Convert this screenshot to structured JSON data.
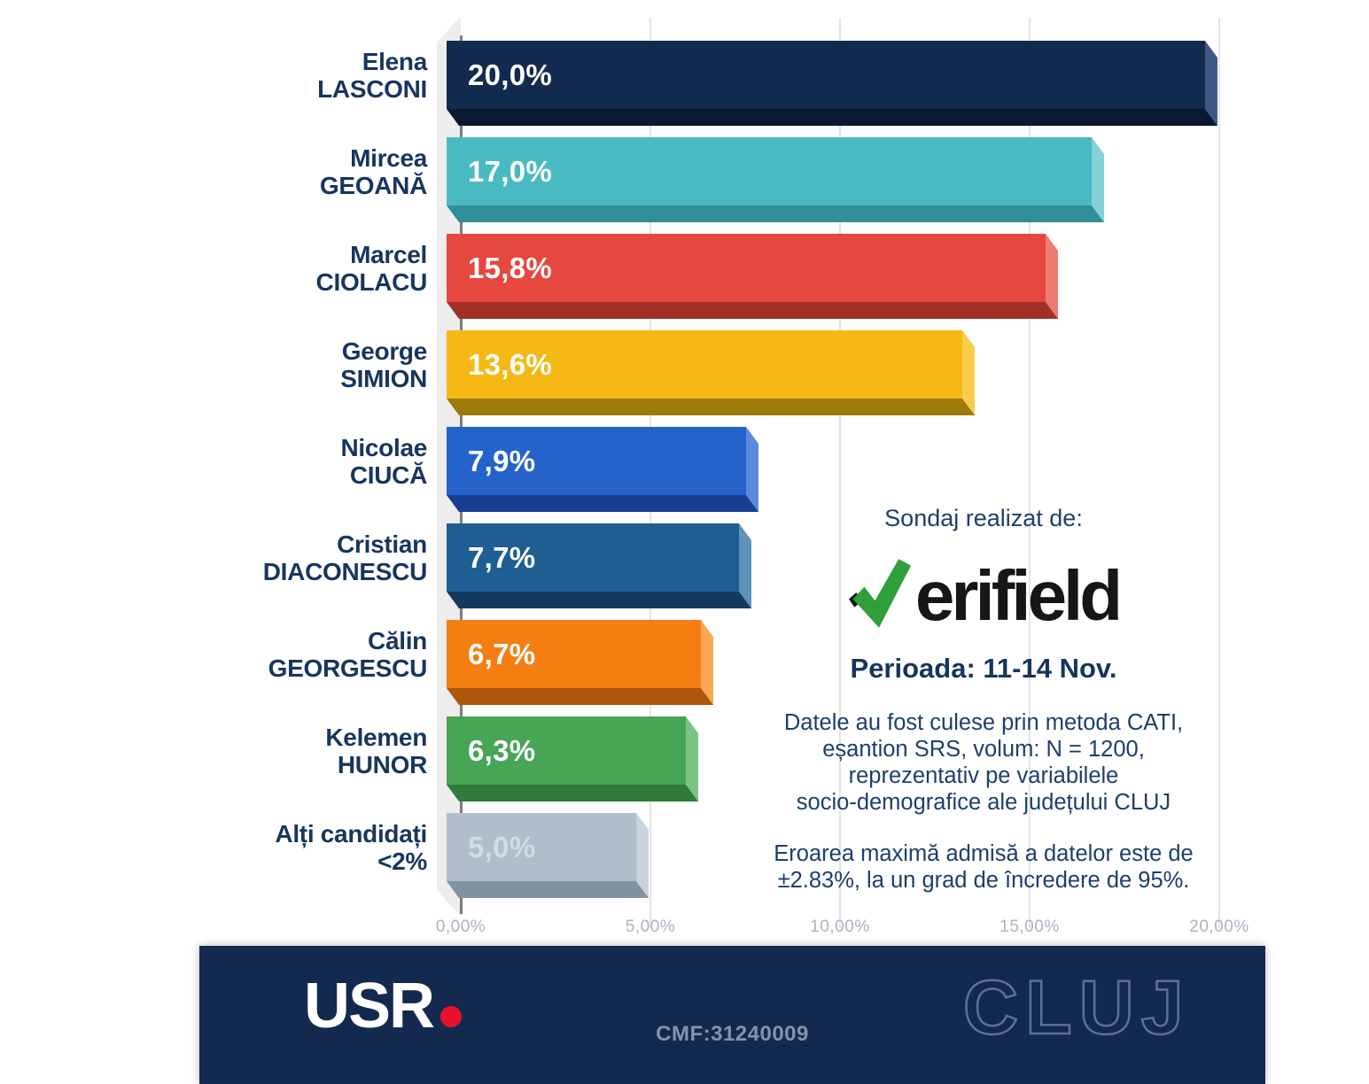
{
  "chart_data": {
    "type": "bar",
    "orientation": "horizontal",
    "unit": "%",
    "xlim": [
      0,
      20
    ],
    "grid": true,
    "x_ticks": [
      {
        "value": 0,
        "label": "0,00%"
      },
      {
        "value": 5,
        "label": "5,00%"
      },
      {
        "value": 10,
        "label": "10,00%"
      },
      {
        "value": 15,
        "label": "15,00%"
      },
      {
        "value": 20,
        "label": "20,00%"
      }
    ],
    "categories": [
      "Elena LASCONI",
      "Mircea GEOANĂ",
      "Marcel CIOLACU",
      "George SIMION",
      "Nicolae CIUCĂ",
      "Cristian DIACONESCU",
      "Călin GEORGESCU",
      "Kelemen HUNOR",
      "Alți candidați <2%"
    ],
    "values": [
      20.0,
      17.0,
      15.8,
      13.6,
      7.9,
      7.7,
      6.7,
      6.3,
      5.0
    ],
    "bars": [
      {
        "line1": "Elena",
        "line2": "LASCONI",
        "value": 20.0,
        "label": "20,0%",
        "color": "#132A4F",
        "side": "#3E5A84",
        "shade": "#0A1830",
        "label_color": "#FFFFFF"
      },
      {
        "line1": "Mircea",
        "line2": "GEOANĂ",
        "value": 17.0,
        "label": "17,0%",
        "color": "#49BAC2",
        "side": "#83D2D6",
        "shade": "#2F8E96",
        "label_color": "#FFFFFF"
      },
      {
        "line1": "Marcel",
        "line2": "CIOLACU",
        "value": 15.8,
        "label": "15,8%",
        "color": "#E6473E",
        "side": "#EE7B71",
        "shade": "#A02F28",
        "label_color": "#FFFFFF"
      },
      {
        "line1": "George",
        "line2": "SIMION",
        "value": 13.6,
        "label": "13,6%",
        "color": "#F6B913",
        "side": "#F9CC4B",
        "shade": "#9E7A09",
        "label_color": "#FFFFFF"
      },
      {
        "line1": "Nicolae",
        "line2": "CIUCĂ",
        "value": 7.9,
        "label": "7,9%",
        "color": "#2563CB",
        "side": "#5B89DE",
        "shade": "#173E92",
        "label_color": "#FFFFFF"
      },
      {
        "line1": "Cristian",
        "line2": "DIACONESCU",
        "value": 7.7,
        "label": "7,7%",
        "color": "#1E5E93",
        "side": "#5D93B8",
        "shade": "#123A5E",
        "label_color": "#FFFFFF"
      },
      {
        "line1": "Călin",
        "line2": "GEORGESCU",
        "value": 6.7,
        "label": "6,7%",
        "color": "#F57E12",
        "side": "#F8A953",
        "shade": "#AD570B",
        "label_color": "#FFFFFF"
      },
      {
        "line1": "Kelemen",
        "line2": "HUNOR",
        "value": 6.3,
        "label": "6,3%",
        "color": "#47A556",
        "side": "#7CC286",
        "shade": "#2E7B3B",
        "label_color": "#FFFFFF"
      },
      {
        "line1": "Alți candidați",
        "line2": "<2%",
        "value": 5.0,
        "label": "5,0%",
        "color": "#B0BECC",
        "side": "#C8D2DC",
        "shade": "#8292A0",
        "label_color": "#D2DCE5"
      }
    ]
  },
  "info_panel": {
    "heading": "Sondaj realizat de:",
    "brand": "verifield",
    "brand_suffix": "erifield",
    "period": "Perioada: 11-14 Nov.",
    "methodology": [
      "Datele au fost culese prin metoda CATI,",
      "eșantion SRS, volum: N = 1200,",
      "reprezentativ pe variabilele",
      "socio-demografice ale județului CLUJ"
    ],
    "error_note": [
      "Eroarea maximă admisă a datelor este de",
      "±2.83%, la un grad de încredere de 95%."
    ],
    "brand_green": "#2F9E3B",
    "brand_black": "#161616",
    "text_color": "#1C3F6E"
  },
  "footer": {
    "usr_text": "USR",
    "cmf": "CMF:31240009",
    "region": "CLUJ",
    "bg": "#14294E",
    "dot_color": "#E8112D"
  }
}
